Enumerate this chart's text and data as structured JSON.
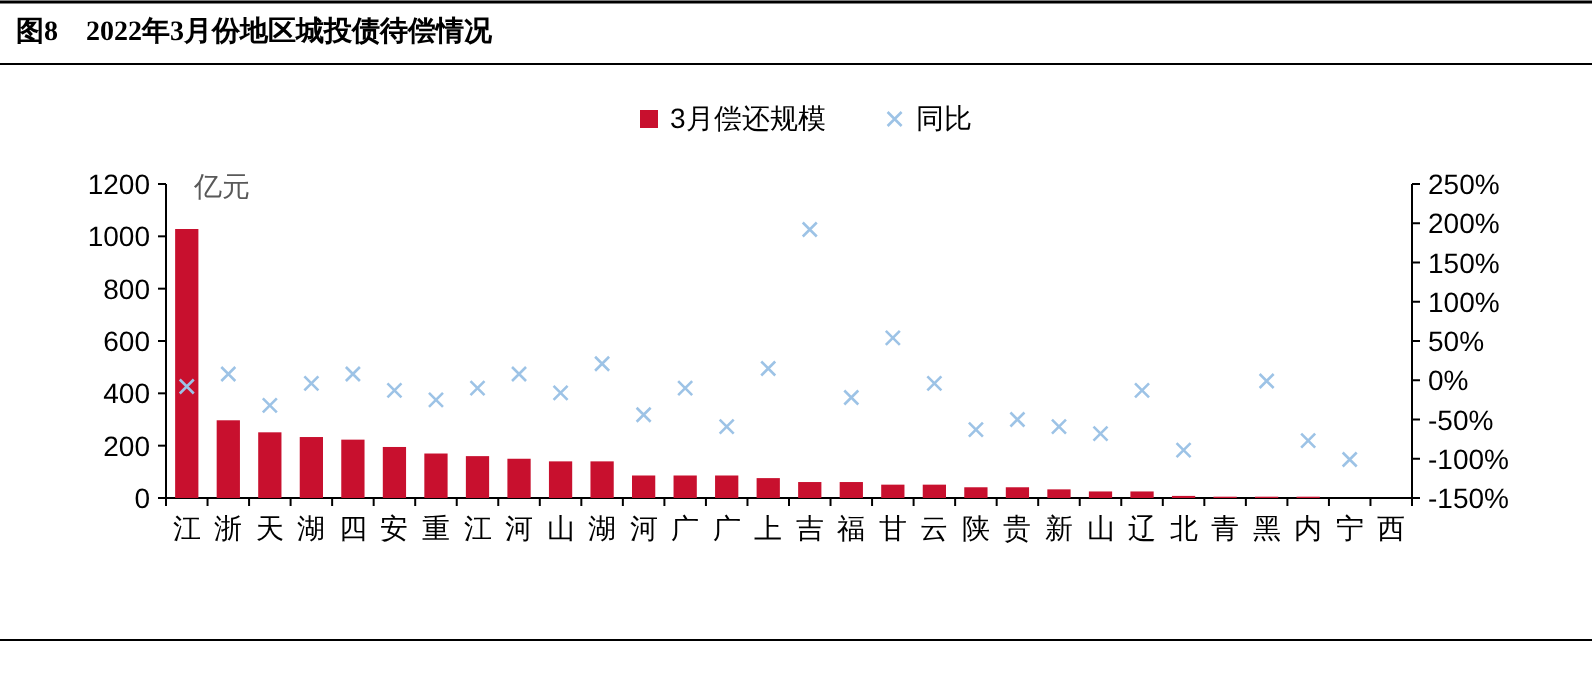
{
  "chart_data": {
    "type": "bar",
    "title": "图8　2022年3月份地区城投债待偿情况",
    "ylabel": "亿元",
    "categories": [
      "江",
      "浙",
      "天",
      "湖",
      "四",
      "安",
      "重",
      "江",
      "河",
      "山",
      "湖",
      "河",
      "广",
      "广",
      "上",
      "吉",
      "福",
      "甘",
      "云",
      "陕",
      "贵",
      "新",
      "山",
      "辽",
      "北",
      "青",
      "黑",
      "内",
      "宁",
      "西"
    ],
    "series": [
      {
        "name": "3月偿还规模",
        "color": "#c8102e",
        "values": [
          1028,
          297,
          251,
          233,
          223,
          195,
          170,
          160,
          150,
          140,
          140,
          86,
          86,
          86,
          76,
          61,
          61,
          51,
          51,
          41,
          41,
          33,
          25,
          25,
          8,
          5,
          5,
          5,
          0,
          0
        ]
      },
      {
        "name": "同比",
        "type": "scatter",
        "axis": "y2",
        "marker": "cross",
        "color": "#9dc3e6",
        "values": [
          -8,
          8,
          -32,
          -4,
          8,
          -13,
          -25,
          -10,
          8,
          -16,
          21,
          -44,
          -10,
          -59,
          15,
          192,
          -22,
          54,
          -4,
          -63,
          -50,
          -59,
          -68,
          -13,
          -89,
          null,
          -1,
          -77,
          -101,
          null
        ]
      }
    ],
    "ylim": [
      0,
      1200
    ],
    "yticks": [
      0,
      200,
      400,
      600,
      800,
      1000,
      1200
    ],
    "y2lim": [
      -150,
      250
    ],
    "y2ticks": [
      {
        "value": -150,
        "label": "-150%"
      },
      {
        "value": -100,
        "label": "-100%"
      },
      {
        "value": -50,
        "label": "-50%"
      },
      {
        "value": 0,
        "label": "0%"
      },
      {
        "value": 50,
        "label": "50%"
      },
      {
        "value": 100,
        "label": "100%"
      },
      {
        "value": 150,
        "label": "150%"
      },
      {
        "value": 200,
        "label": "200%"
      },
      {
        "value": 250,
        "label": "250%"
      }
    ],
    "legend": "top",
    "grid": false
  }
}
